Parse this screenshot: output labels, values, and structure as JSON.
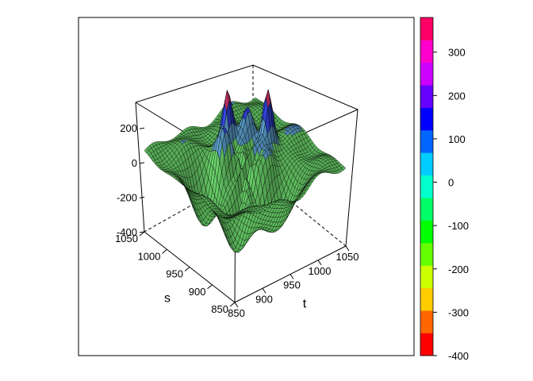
{
  "chart_data": {
    "type": "surface3d",
    "title": "",
    "xlabel": "t",
    "ylabel": "s",
    "zlabel": "",
    "x_range": [
      850,
      1050
    ],
    "y_range": [
      850,
      1050
    ],
    "z_range": [
      -400,
      380
    ],
    "x_ticks": [
      "850",
      "900",
      "950",
      "1000",
      "1050"
    ],
    "y_ticks": [
      "850",
      "900",
      "950",
      "1000",
      "1050"
    ],
    "z_ticks": [
      "-400",
      "-200",
      "0",
      "200"
    ],
    "colorbar": {
      "ticks": [
        "-400",
        "-300",
        "-200",
        "-100",
        "0",
        "100",
        "200",
        "300"
      ],
      "min": -400,
      "max": 380,
      "colors": [
        "#FF0000",
        "#FF6600",
        "#FFCC00",
        "#CCFF00",
        "#66FF00",
        "#00FF00",
        "#00FF66",
        "#00FFCC",
        "#00CCFF",
        "#0066FF",
        "#0000FF",
        "#6600FF",
        "#CC00FF",
        "#FF00CC",
        "#FF0066"
      ]
    },
    "surface_colors": [
      "#66CC66",
      "#5A9CC8",
      "#3344DD",
      "#CC3366"
    ],
    "mesh_color": "#000000",
    "grid": false,
    "legend": "right"
  }
}
